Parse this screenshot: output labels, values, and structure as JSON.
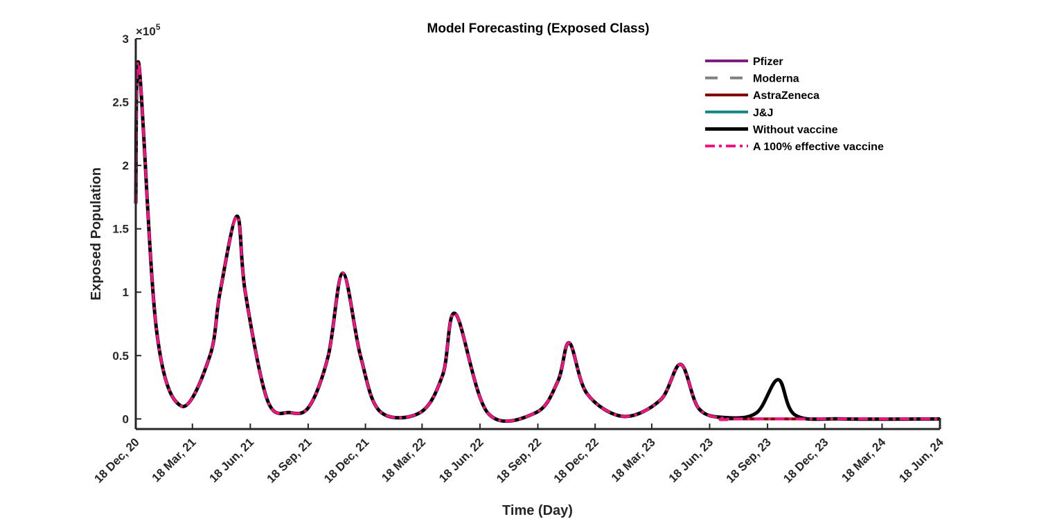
{
  "chart_data": {
    "type": "line",
    "title": "Model Forecasting (Exposed Class)",
    "xlabel": "Time (Day)",
    "ylabel": "Exposed Population",
    "y_exponent_label": "×10",
    "y_exponent": "5",
    "xlim": [
      "2020-12-18",
      "2024-06-18"
    ],
    "ylim": [
      -0.08,
      3.0
    ],
    "y_ticks": [
      0,
      0.5,
      1,
      1.5,
      2,
      2.5,
      3
    ],
    "y_tick_labels": [
      "0",
      "0.5",
      "1",
      "1.5",
      "2",
      "2.5",
      "3"
    ],
    "x_ticks": [
      "2020-12-18",
      "2021-03-18",
      "2021-06-18",
      "2021-09-18",
      "2021-12-18",
      "2022-03-18",
      "2022-06-18",
      "2022-09-18",
      "2022-12-18",
      "2023-03-18",
      "2023-06-18",
      "2023-09-18",
      "2023-12-18",
      "2024-03-18",
      "2024-06-18"
    ],
    "x_tick_labels": [
      "18 Dec, 20",
      "18 Mar, 21",
      "18 Jun, 21",
      "18 Sep, 21",
      "18 Dec, 21",
      "18 Mar, 22",
      "18 Jun, 22",
      "18 Sep, 22",
      "18 Dec, 22",
      "18 Mar, 23",
      "18 Jun, 23",
      "18 Sep, 23",
      "18 Dec, 23",
      "18 Mar, 24",
      "18 Jun, 24"
    ],
    "grid": false,
    "legend_position": "top-right",
    "series": [
      {
        "name": "Pfizer",
        "color": "#7e1e80",
        "dash": "solid",
        "width": 4,
        "x": [
          "2020-12-18",
          "2020-12-23",
          "2021-01-20",
          "2021-03-01",
          "2021-04-15",
          "2021-05-01",
          "2021-05-28",
          "2021-06-10",
          "2021-07-15",
          "2021-08-20",
          "2021-09-20",
          "2021-10-20",
          "2021-11-12",
          "2021-12-10",
          "2022-01-10",
          "2022-03-15",
          "2022-04-20",
          "2022-05-10",
          "2022-06-30",
          "2022-09-15",
          "2022-10-20",
          "2022-11-07",
          "2022-12-05",
          "2023-02-01",
          "2023-04-01",
          "2023-05-03",
          "2023-06-01",
          "2023-07-15",
          "2023-08-01",
          "2024-06-18"
        ],
        "y": [
          1.7,
          2.8,
          0.7,
          0.1,
          0.5,
          1.0,
          1.6,
          1.0,
          0.15,
          0.05,
          0.1,
          0.5,
          1.15,
          0.5,
          0.06,
          0.05,
          0.35,
          0.83,
          0.05,
          0.05,
          0.3,
          0.6,
          0.2,
          0.02,
          0.15,
          0.43,
          0.08,
          0.0,
          0.0,
          0.0
        ]
      },
      {
        "name": "Moderna",
        "color": "#808080",
        "dash": "dashed",
        "width": 4,
        "x": [
          "2020-12-18",
          "2020-12-23",
          "2021-01-20",
          "2021-03-01",
          "2021-04-15",
          "2021-05-01",
          "2021-05-28",
          "2021-06-10",
          "2021-07-15",
          "2021-08-20",
          "2021-09-20",
          "2021-10-20",
          "2021-11-12",
          "2021-12-10",
          "2022-01-10",
          "2022-03-15",
          "2022-04-20",
          "2022-05-10",
          "2022-06-30",
          "2022-09-15",
          "2022-10-20",
          "2022-11-07",
          "2022-12-05",
          "2023-02-01",
          "2023-04-01",
          "2023-05-03",
          "2023-06-01",
          "2023-07-15",
          "2023-08-01",
          "2024-06-18"
        ],
        "y": [
          1.7,
          2.8,
          0.7,
          0.1,
          0.5,
          1.0,
          1.6,
          1.0,
          0.15,
          0.05,
          0.1,
          0.5,
          1.15,
          0.5,
          0.06,
          0.05,
          0.35,
          0.83,
          0.05,
          0.05,
          0.3,
          0.6,
          0.2,
          0.02,
          0.15,
          0.43,
          0.08,
          0.0,
          0.0,
          0.0
        ]
      },
      {
        "name": "AstraZeneca",
        "color": "#7f0000",
        "dash": "solid",
        "width": 4,
        "x": [
          "2020-12-18",
          "2020-12-23",
          "2021-01-20",
          "2021-03-01",
          "2021-04-15",
          "2021-05-01",
          "2021-05-28",
          "2021-06-10",
          "2021-07-15",
          "2021-08-20",
          "2021-09-20",
          "2021-10-20",
          "2021-11-12",
          "2021-12-10",
          "2022-01-10",
          "2022-03-15",
          "2022-04-20",
          "2022-05-10",
          "2022-06-30",
          "2022-09-15",
          "2022-10-20",
          "2022-11-07",
          "2022-12-05",
          "2023-02-01",
          "2023-04-01",
          "2023-05-03",
          "2023-06-01",
          "2023-07-15",
          "2023-08-01",
          "2024-06-18"
        ],
        "y": [
          1.7,
          2.8,
          0.7,
          0.1,
          0.5,
          1.0,
          1.6,
          1.0,
          0.15,
          0.05,
          0.1,
          0.5,
          1.15,
          0.5,
          0.06,
          0.05,
          0.35,
          0.83,
          0.05,
          0.05,
          0.3,
          0.6,
          0.2,
          0.02,
          0.15,
          0.43,
          0.08,
          0.0,
          0.0,
          0.0
        ]
      },
      {
        "name": "J&J",
        "color": "#0f8585",
        "dash": "solid",
        "width": 4,
        "x": [
          "2020-12-18",
          "2020-12-23",
          "2021-01-20",
          "2021-03-01",
          "2021-04-15",
          "2021-05-01",
          "2021-05-28",
          "2021-06-10",
          "2021-07-15",
          "2021-08-20",
          "2021-09-20",
          "2021-10-20",
          "2021-11-12",
          "2021-12-10",
          "2022-01-10",
          "2022-03-15",
          "2022-04-20",
          "2022-05-10",
          "2022-06-30",
          "2022-09-15",
          "2022-10-20",
          "2022-11-07",
          "2022-12-05",
          "2023-02-01",
          "2023-04-01",
          "2023-05-03",
          "2023-06-01",
          "2023-07-15",
          "2023-09-01",
          "2023-10-05",
          "2023-11-01",
          "2024-01-15",
          "2024-06-18"
        ],
        "y": [
          1.7,
          2.8,
          0.7,
          0.1,
          0.5,
          1.0,
          1.6,
          1.0,
          0.15,
          0.05,
          0.1,
          0.5,
          1.15,
          0.5,
          0.06,
          0.05,
          0.35,
          0.83,
          0.05,
          0.05,
          0.3,
          0.6,
          0.2,
          0.02,
          0.15,
          0.43,
          0.08,
          0.01,
          0.05,
          0.31,
          0.03,
          0.0,
          0.0
        ]
      },
      {
        "name": "Without vaccine",
        "color": "#000000",
        "dash": "solid",
        "width": 5,
        "x": [
          "2020-12-18",
          "2020-12-23",
          "2021-01-20",
          "2021-03-01",
          "2021-04-15",
          "2021-05-01",
          "2021-05-28",
          "2021-06-10",
          "2021-07-15",
          "2021-08-20",
          "2021-09-20",
          "2021-10-20",
          "2021-11-12",
          "2021-12-10",
          "2022-01-10",
          "2022-03-15",
          "2022-04-20",
          "2022-05-10",
          "2022-06-30",
          "2022-09-15",
          "2022-10-20",
          "2022-11-07",
          "2022-12-05",
          "2023-02-01",
          "2023-04-01",
          "2023-05-03",
          "2023-06-01",
          "2023-07-15",
          "2023-09-01",
          "2023-10-05",
          "2023-11-01",
          "2024-01-15",
          "2024-06-18"
        ],
        "y": [
          1.7,
          2.8,
          0.7,
          0.1,
          0.5,
          1.0,
          1.6,
          1.0,
          0.15,
          0.05,
          0.1,
          0.5,
          1.15,
          0.5,
          0.06,
          0.05,
          0.35,
          0.83,
          0.05,
          0.05,
          0.3,
          0.6,
          0.2,
          0.02,
          0.15,
          0.43,
          0.08,
          0.01,
          0.05,
          0.31,
          0.03,
          0.0,
          0.0
        ]
      },
      {
        "name": "A 100% effective vaccine",
        "color": "#ef1684",
        "dash": "dashdot",
        "width": 4,
        "x": [
          "2020-12-18",
          "2020-12-23",
          "2021-01-20",
          "2021-03-01",
          "2021-04-15",
          "2021-05-01",
          "2021-05-28",
          "2021-06-10",
          "2021-07-15",
          "2021-08-20",
          "2021-09-20",
          "2021-10-20",
          "2021-11-12",
          "2021-12-10",
          "2022-01-10",
          "2022-03-15",
          "2022-04-20",
          "2022-05-10",
          "2022-06-30",
          "2022-09-15",
          "2022-10-20",
          "2022-11-07",
          "2022-12-05",
          "2023-02-01",
          "2023-04-01",
          "2023-05-03",
          "2023-06-01",
          "2023-07-15",
          "2023-08-01",
          "2024-06-18"
        ],
        "y": [
          1.7,
          2.8,
          0.7,
          0.1,
          0.5,
          1.0,
          1.6,
          1.0,
          0.15,
          0.05,
          0.1,
          0.5,
          1.15,
          0.5,
          0.06,
          0.05,
          0.35,
          0.83,
          0.05,
          0.05,
          0.3,
          0.6,
          0.2,
          0.02,
          0.15,
          0.43,
          0.08,
          0.0,
          0.0,
          0.0
        ]
      }
    ]
  }
}
